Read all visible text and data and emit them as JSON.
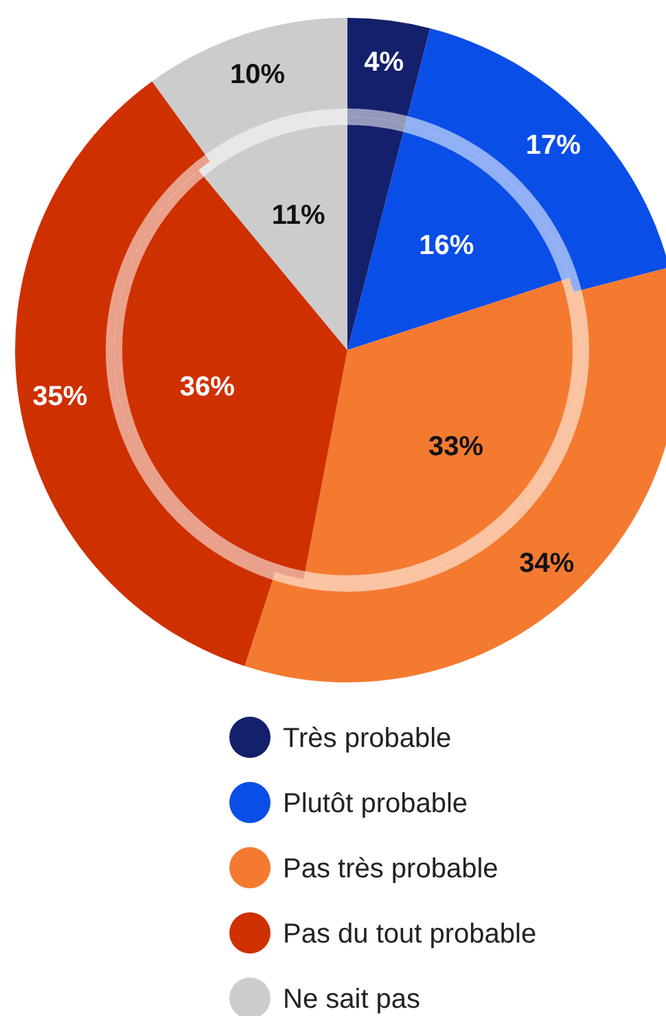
{
  "chart_data": {
    "type": "pie",
    "categories": [
      "Très probable",
      "Plutôt probable",
      "Pas très probable",
      "Pas du tout probable",
      "Ne sait pas"
    ],
    "colors": [
      "#14206b",
      "#0a4ee8",
      "#f47a30",
      "#cf3000",
      "#cccccc"
    ],
    "series": [
      {
        "values": [
          4,
          17,
          34,
          35,
          10
        ],
        "value_labels": [
          "4%",
          "17%",
          "34%",
          "35%",
          "10%"
        ]
      },
      {
        "values": [
          4,
          16,
          33,
          36,
          11
        ],
        "value_labels": [
          null,
          "16%",
          "33%",
          "36%",
          "11%"
        ]
      }
    ],
    "legend": "bottom"
  }
}
